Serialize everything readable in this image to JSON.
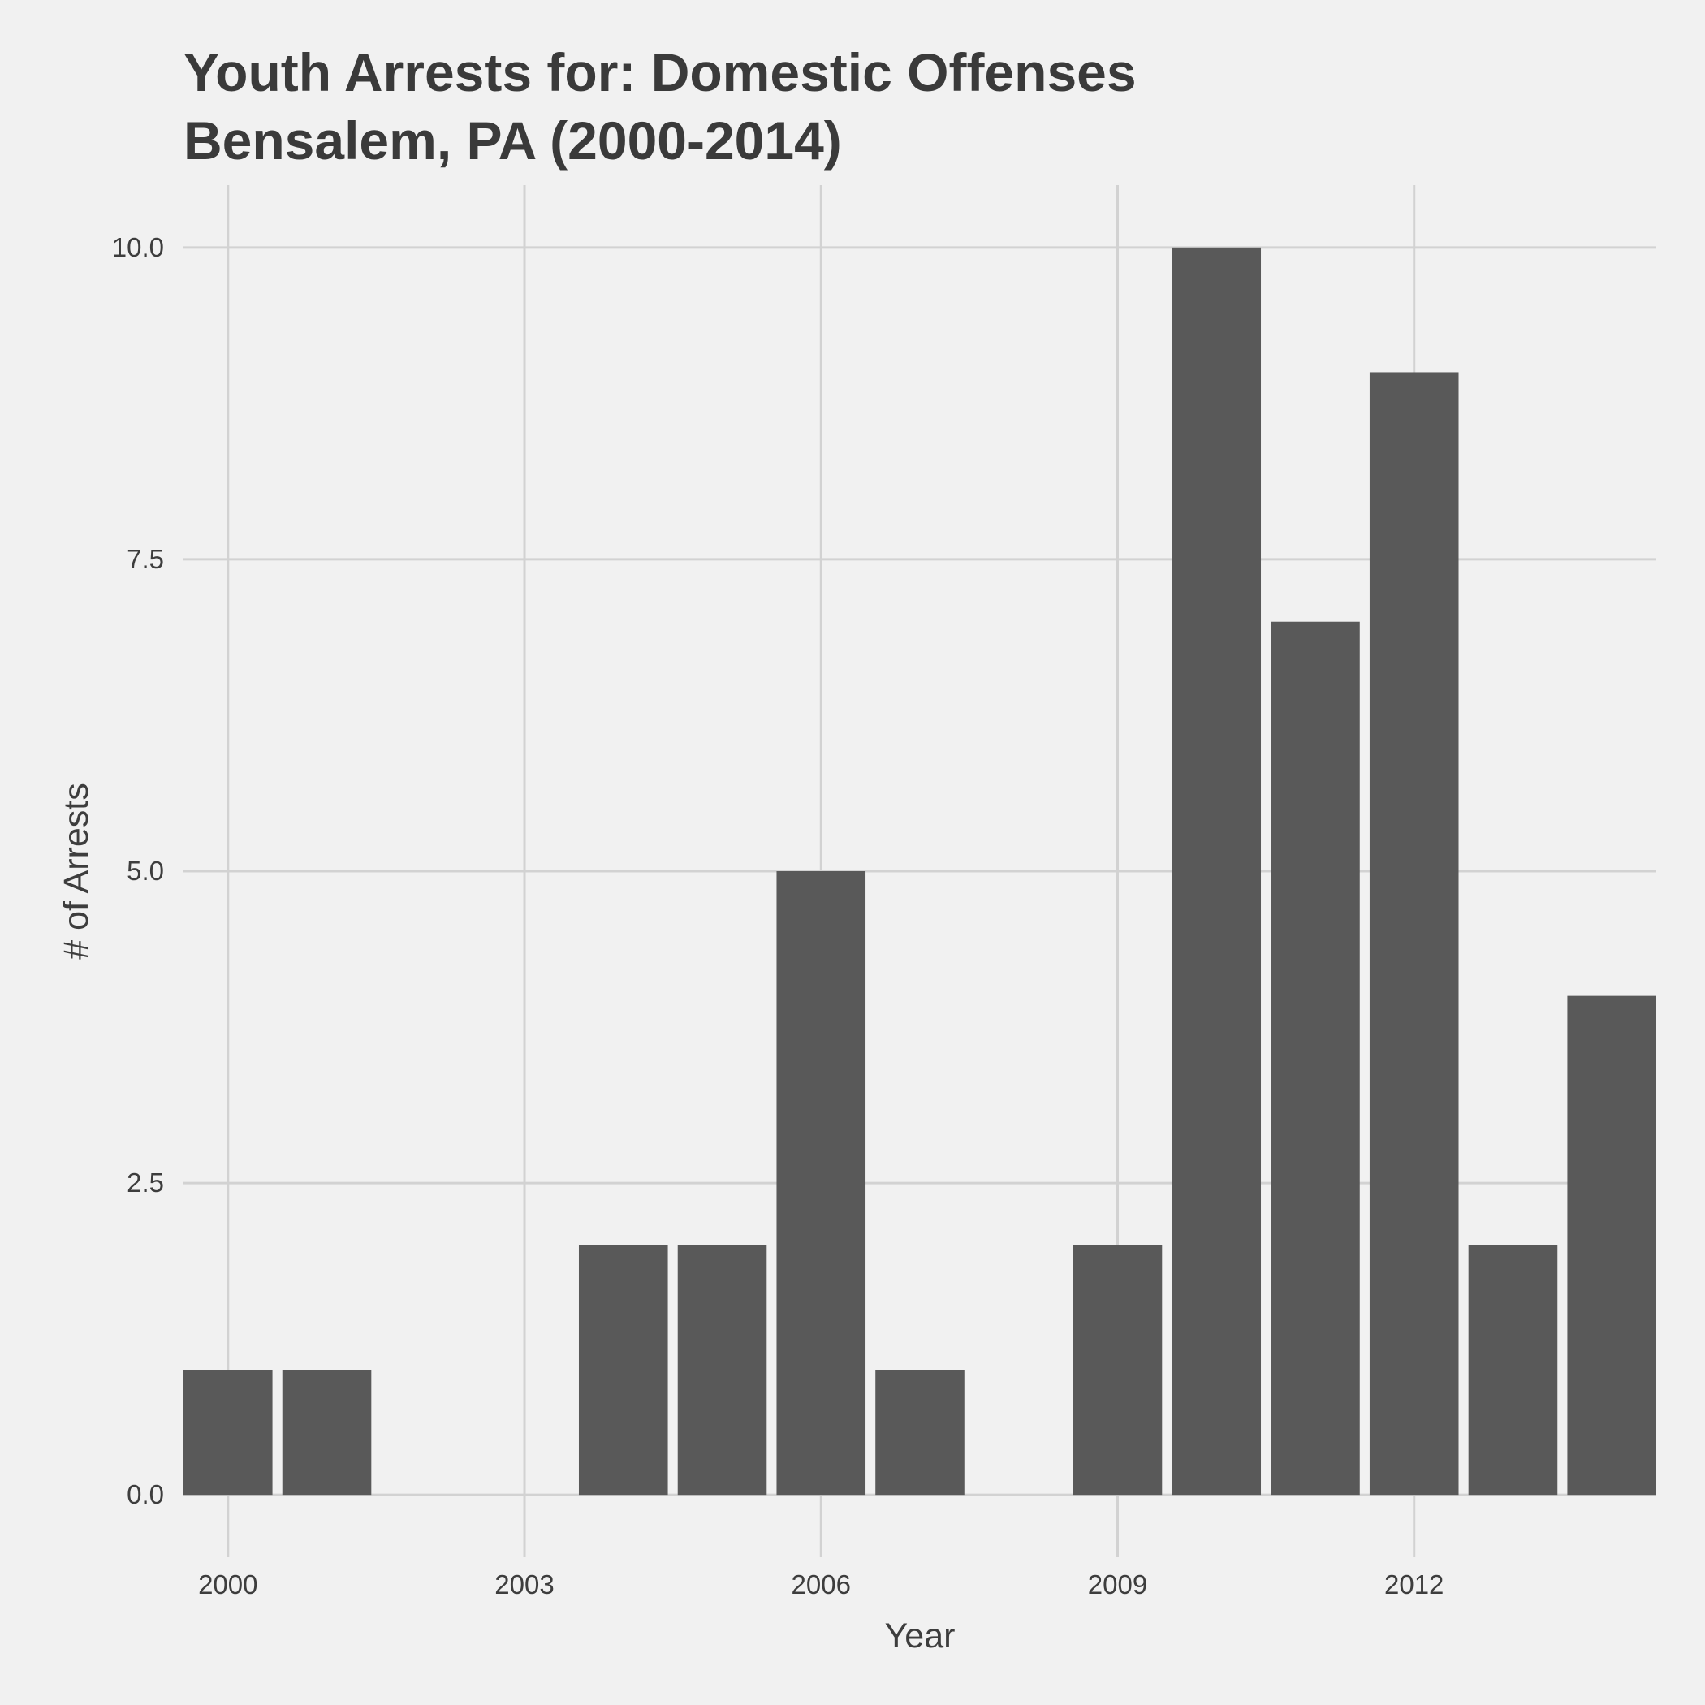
{
  "chart_data": {
    "type": "bar",
    "title_lines": [
      "Youth Arrests for: Domestic Offenses",
      "Bensalem, PA (2000-2014)"
    ],
    "xlabel": "Year",
    "ylabel": "# of Arrests",
    "x": [
      2000,
      2001,
      2004,
      2005,
      2006,
      2007,
      2009,
      2010,
      2011,
      2012,
      2013,
      2014
    ],
    "values": [
      1,
      1,
      2,
      2,
      5,
      1,
      2,
      10,
      7,
      9,
      2,
      4
    ],
    "x_ticks": [
      2000,
      2003,
      2006,
      2009,
      2012
    ],
    "x_tick_labels": [
      "2000",
      "2003",
      "2006",
      "2009",
      "2012"
    ],
    "y_ticks": [
      0,
      2.5,
      5,
      7.5,
      10
    ],
    "y_tick_labels": [
      "0.0",
      "2.5",
      "5.0",
      "7.5",
      "10.0"
    ],
    "xlim": [
      1999.55,
      2014.45
    ],
    "ylim": [
      -0.5,
      10.5
    ],
    "grid": true,
    "legend": "none",
    "colors": {
      "background": "#f1f1f1",
      "bar": "#595959",
      "grid": "#d2d2d2",
      "text": "#3d3d3d"
    }
  }
}
